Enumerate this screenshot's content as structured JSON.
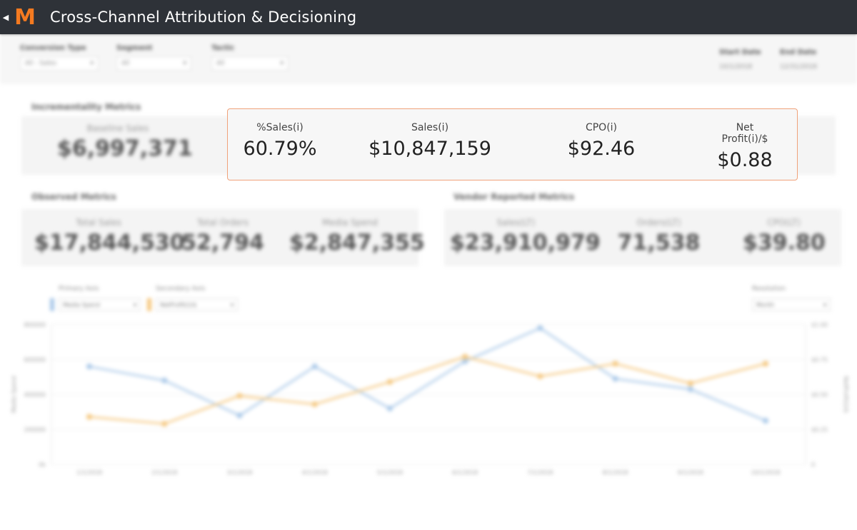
{
  "header": {
    "back_icon": "back-arrow-icon",
    "logo_letter": "M",
    "logo_color": "#f47a20",
    "title": "Cross-Channel Attribution & Decisioning"
  },
  "filters": [
    {
      "label": "Conversion Type",
      "value": "All - Sales"
    },
    {
      "label": "Segment",
      "value": "All"
    },
    {
      "label": "Tactic",
      "value": "All"
    }
  ],
  "dates": {
    "start_label": "Start Date",
    "start_value": "10/1/2018",
    "end_label": "End Date",
    "end_value": "12/31/2018"
  },
  "incrementality": {
    "title": "Incrementality Metrics",
    "baseline_label": "Baseline Sales",
    "baseline_value": "$6,997,371",
    "highlighted": [
      {
        "label": "%Sales(i)",
        "value": "60.79%"
      },
      {
        "label": "Sales(i)",
        "value": "$10,847,159"
      },
      {
        "label": "CPO(i)",
        "value": "$92.46"
      },
      {
        "label": "Net Profit(i)/$",
        "value": "$0.88"
      }
    ]
  },
  "observed": {
    "title": "Observed Metrics",
    "items": [
      {
        "label": "Total Sales",
        "value": "$17,844,530"
      },
      {
        "label": "Total Orders",
        "value": "52,794"
      },
      {
        "label": "Media Spend",
        "value": "$2,847,355"
      }
    ]
  },
  "vendor": {
    "title": "Vendor Reported Metrics",
    "items": [
      {
        "label": "Sales(LT)",
        "value": "$23,910,979"
      },
      {
        "label": "Orders(LT)",
        "value": "71,538"
      },
      {
        "label": "CPO(LT)",
        "value": "$39.80"
      }
    ]
  },
  "chart_controls": {
    "primary_label": "Primary Axis",
    "primary_value": "Media Spend",
    "secondary_label": "Secondary Axis",
    "secondary_value": "NetProfit(i)/$",
    "resolution_label": "Resolution",
    "resolution_value": "Month"
  },
  "chart_data": {
    "type": "line",
    "x": [
      "1/1/2018",
      "2/1/2018",
      "3/1/2018",
      "4/1/2018",
      "5/1/2018",
      "6/1/2018",
      "7/1/2018",
      "8/1/2018",
      "9/1/2018",
      "10/1/2018"
    ],
    "primary_ylim": [
      0,
      800000
    ],
    "primary_ticks": [
      "0k",
      "200000",
      "400000",
      "600000",
      "800000"
    ],
    "secondary_ylim": [
      0,
      1.0
    ],
    "secondary_ticks": [
      "0",
      "$0.25",
      "$0.50",
      "$0.75",
      "$1.00"
    ],
    "ylabel": "Media Spend",
    "y2label": "NetProfit(i)/$",
    "grid": true,
    "series": [
      {
        "name": "Media Spend",
        "axis": "primary",
        "color": "#a9c8e8",
        "values": [
          560000,
          480000,
          280000,
          560000,
          320000,
          590000,
          780000,
          490000,
          430000,
          250000
        ]
      },
      {
        "name": "NetProfit(i)/$",
        "axis": "secondary",
        "color": "#f5c77e",
        "values": [
          0.34,
          0.29,
          0.49,
          0.43,
          0.59,
          0.77,
          0.63,
          0.72,
          0.58,
          0.72
        ]
      }
    ]
  }
}
